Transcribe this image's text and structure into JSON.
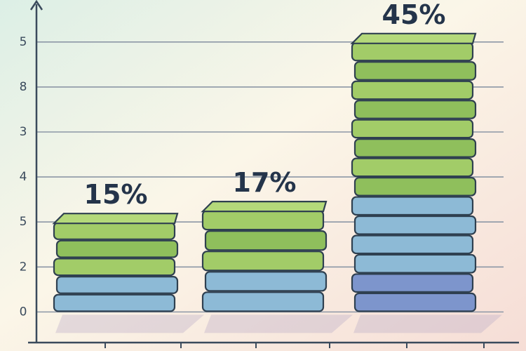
{
  "chart_data": {
    "type": "bar",
    "values": [
      15,
      17,
      45
    ],
    "value_labels": [
      "15%",
      "17%",
      "45%"
    ],
    "ylim": [
      -3,
      52
    ],
    "yticks": [
      0,
      {
        "value": 7.5,
        "label": "2"
      },
      {
        "value": 15,
        "label": "5"
      },
      {
        "value": 22.5,
        "label": "4"
      },
      {
        "value": 30,
        "label": "3"
      },
      {
        "value": 37.5,
        "label": "8"
      },
      {
        "value": 45,
        "label": "5"
      }
    ],
    "grid": true,
    "color": "#9ccb61"
  }
}
